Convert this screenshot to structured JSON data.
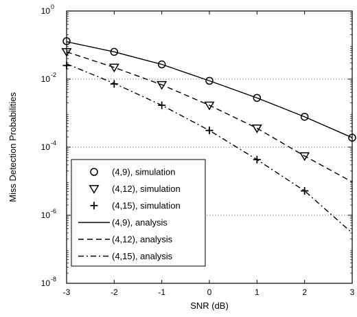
{
  "chart_data": {
    "type": "line",
    "xlabel": "SNR (dB)",
    "ylabel": "Miss Detection Probabilities",
    "xlim": [
      -3,
      3
    ],
    "ylim": [
      1e-08,
      1
    ],
    "yscale": "log",
    "x_ticks": [
      "-3",
      "-2",
      "-1",
      "0",
      "1",
      "2",
      "3"
    ],
    "y_ticks": [
      {
        "base": "10",
        "exp": "0",
        "value": 1
      },
      {
        "base": "10",
        "exp": "-2",
        "value": 0.01
      },
      {
        "base": "10",
        "exp": "-4",
        "value": 0.0001
      },
      {
        "base": "10",
        "exp": "-6",
        "value": 1e-06
      },
      {
        "base": "10",
        "exp": "-8",
        "value": 1e-08
      }
    ],
    "grid": "horizontal dotted at major y ticks",
    "legend_position": "lower-left",
    "series": [
      {
        "name": "(4,9), simulation",
        "marker": "circle",
        "x": [
          -3,
          -2,
          -1,
          0,
          1,
          2,
          3
        ],
        "y": [
          0.13,
          0.063,
          0.027,
          0.0089,
          0.0028,
          0.00078,
          0.00019
        ]
      },
      {
        "name": "(4,12), simulation",
        "marker": "triangle-down",
        "x": [
          -3,
          -2,
          -1,
          0,
          1,
          2,
          3
        ],
        "y": [
          0.063,
          0.022,
          0.0068,
          0.0017,
          0.00036,
          5.5e-05,
          0
        ]
      },
      {
        "name": "(4,15), simulation",
        "marker": "plus",
        "x": [
          -3,
          -2,
          -1,
          0,
          1,
          2
        ],
        "y": [
          0.025,
          0.0072,
          0.0017,
          0.00031,
          4.3e-05,
          5.2e-06
        ]
      },
      {
        "name": "(4,9), analysis",
        "line": "solid",
        "x": [
          -3,
          -2,
          -1,
          0,
          1,
          2,
          3
        ],
        "y": [
          0.125,
          0.063,
          0.027,
          0.0089,
          0.0028,
          0.00078,
          0.00019
        ]
      },
      {
        "name": "(4,12), analysis",
        "line": "dashed",
        "x": [
          -3,
          -2,
          -1,
          0,
          1,
          2,
          3
        ],
        "y": [
          0.063,
          0.022,
          0.0068,
          0.0017,
          0.00036,
          5.5e-05,
          9.5e-06
        ]
      },
      {
        "name": "(4,15), analysis",
        "line": "dash-dot",
        "x": [
          -3,
          -2,
          -1,
          0,
          1,
          2,
          3
        ],
        "y": [
          0.028,
          0.0075,
          0.0017,
          0.00031,
          4.3e-05,
          5.2e-06,
          3e-07
        ]
      }
    ],
    "legend": [
      {
        "label": "(4,9), simulation",
        "symbol": "circle"
      },
      {
        "label": "(4,12), simulation",
        "symbol": "triangle-down"
      },
      {
        "label": "(4,15), simulation",
        "symbol": "plus"
      },
      {
        "label": "(4,9), analysis",
        "symbol": "solid"
      },
      {
        "label": "(4,12), analysis",
        "symbol": "dashed"
      },
      {
        "label": "(4,15), analysis",
        "symbol": "dash-dot"
      }
    ]
  }
}
